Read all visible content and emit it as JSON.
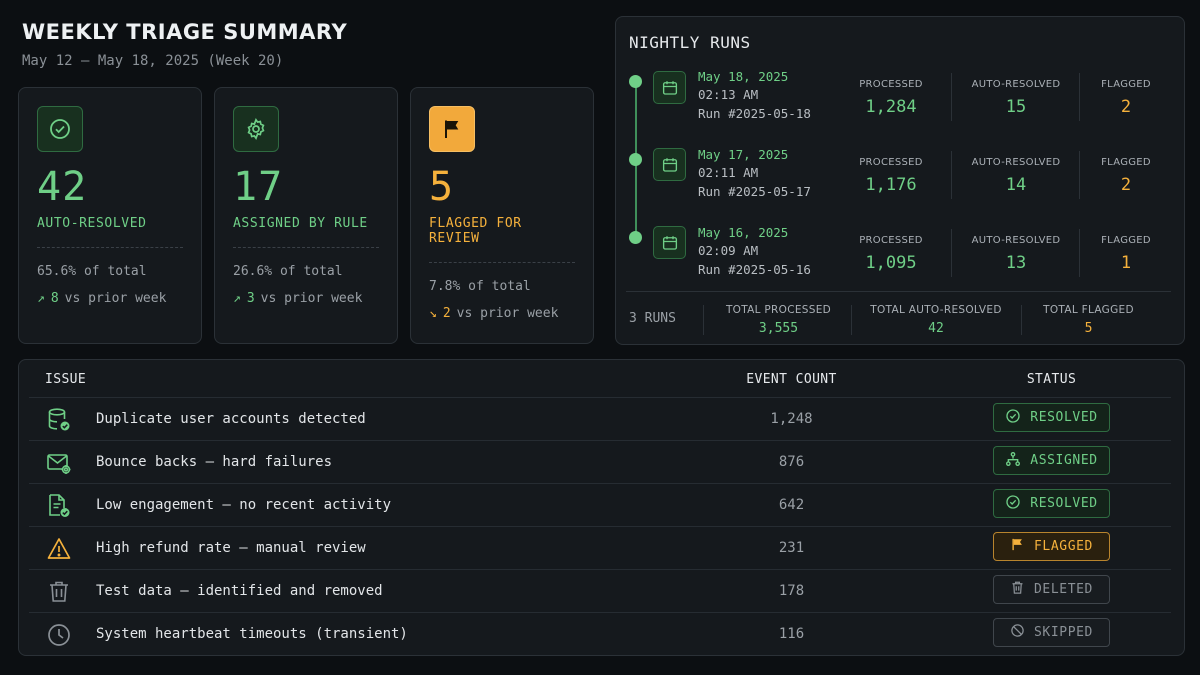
{
  "header": {
    "title": "WEEKLY TRIAGE SUMMARY",
    "subtitle": "May 12 – May 18, 2025 (Week 20)"
  },
  "kpis": [
    {
      "icon": "check-circle-icon",
      "value": "42",
      "label": "AUTO-RESOLVED",
      "share": "65.6% of total",
      "change_dir": "up",
      "change_arrow": "↗",
      "change_value": "8",
      "change_text": "vs prior week",
      "color": "#6fcf87"
    },
    {
      "icon": "gear-icon",
      "value": "17",
      "label": "ASSIGNED BY RULE",
      "share": "26.6% of total",
      "change_dir": "up",
      "change_arrow": "↗",
      "change_value": "3",
      "change_text": "vs prior week",
      "color": "#6fcf87"
    },
    {
      "icon": "flag-icon",
      "value": "5",
      "label": "FLAGGED FOR REVIEW",
      "share": "7.8% of total",
      "change_dir": "down",
      "change_arrow": "↘",
      "change_value": "2",
      "change_text": "vs prior week",
      "color": "#f5b13c"
    }
  ],
  "nightly_runs": {
    "title": "NIGHTLY RUNS",
    "stat_labels": {
      "processed": "PROCESSED",
      "auto_resolved": "AUTO-RESOLVED",
      "flagged": "FLAGGED"
    },
    "runs": [
      {
        "date": "May 18, 2025",
        "time": "02:13 AM",
        "run_id": "Run #2025-05-18",
        "processed": "1,284",
        "auto_resolved": "15",
        "flagged": "2"
      },
      {
        "date": "May 17, 2025",
        "time": "02:11 AM",
        "run_id": "Run #2025-05-17",
        "processed": "1,176",
        "auto_resolved": "14",
        "flagged": "2"
      },
      {
        "date": "May 16, 2025",
        "time": "02:09 AM",
        "run_id": "Run #2025-05-16",
        "processed": "1,095",
        "auto_resolved": "13",
        "flagged": "1"
      }
    ],
    "footer": {
      "runs_count": "3 RUNS",
      "total_processed_label": "TOTAL PROCESSED",
      "total_processed": "3,555",
      "total_auto_resolved_label": "TOTAL AUTO-RESOLVED",
      "total_auto_resolved": "42",
      "total_flagged_label": "TOTAL FLAGGED",
      "total_flagged": "5"
    }
  },
  "issues": {
    "columns": {
      "issue": "ISSUE",
      "event_count": "EVENT COUNT",
      "status": "STATUS"
    },
    "rows": [
      {
        "icon": "database-check-icon",
        "issue": "Duplicate user accounts detected",
        "count": "1,248",
        "status": "RESOLVED",
        "status_icon": "check-circle-icon"
      },
      {
        "icon": "mail-gear-icon",
        "issue": "Bounce backs – hard failures",
        "count": "876",
        "status": "ASSIGNED",
        "status_icon": "hierarchy-icon"
      },
      {
        "icon": "document-check-icon",
        "issue": "Low engagement – no recent activity",
        "count": "642",
        "status": "RESOLVED",
        "status_icon": "check-circle-icon"
      },
      {
        "icon": "warning-icon",
        "issue": "High refund rate – manual review",
        "count": "231",
        "status": "FLAGGED",
        "status_icon": "flag-icon"
      },
      {
        "icon": "trash-icon",
        "issue": "Test data – identified and removed",
        "count": "178",
        "status": "DELETED",
        "status_icon": "trash-icon"
      },
      {
        "icon": "clock-icon",
        "issue": "System heartbeat timeouts (transient)",
        "count": "116",
        "status": "SKIPPED",
        "status_icon": "blocked-icon"
      }
    ]
  },
  "colors": {
    "accent_green": "#6fcf87",
    "accent_amber": "#f5b13c",
    "muted_gray": "#8a9096",
    "background": "#0c0f12",
    "panel": "#15191d"
  }
}
